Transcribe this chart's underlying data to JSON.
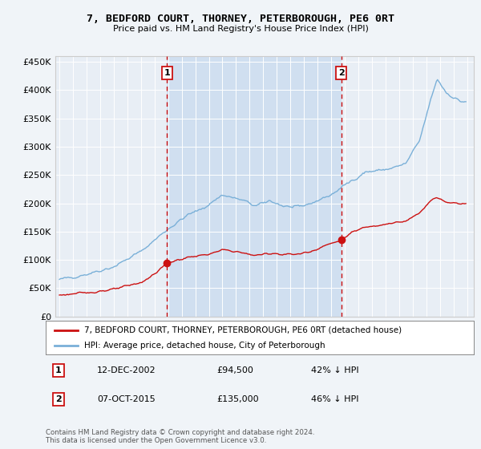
{
  "title": "7, BEDFORD COURT, THORNEY, PETERBOROUGH, PE6 0RT",
  "subtitle": "Price paid vs. HM Land Registry's House Price Index (HPI)",
  "ylim": [
    0,
    460000
  ],
  "yticks": [
    0,
    50000,
    100000,
    150000,
    200000,
    250000,
    300000,
    350000,
    400000,
    450000
  ],
  "ytick_labels": [
    "£0",
    "£50K",
    "£100K",
    "£150K",
    "£200K",
    "£250K",
    "£300K",
    "£350K",
    "£400K",
    "£450K"
  ],
  "background_color": "#f0f4f8",
  "plot_bg_color": "#e8eef5",
  "shade_color": "#d0dff0",
  "legend_entry1": "7, BEDFORD COURT, THORNEY, PETERBOROUGH, PE6 0RT (detached house)",
  "legend_entry2": "HPI: Average price, detached house, City of Peterborough",
  "transaction1_date": "12-DEC-2002",
  "transaction1_price": "£94,500",
  "transaction1_hpi": "42% ↓ HPI",
  "transaction2_date": "07-OCT-2015",
  "transaction2_price": "£135,000",
  "transaction2_hpi": "46% ↓ HPI",
  "footer": "Contains HM Land Registry data © Crown copyright and database right 2024.\nThis data is licensed under the Open Government Licence v3.0.",
  "hpi_color": "#7ab0d8",
  "price_color": "#cc1111",
  "vline_color": "#cc1111",
  "marker_color": "#cc1111",
  "transaction1_x": 2002.92,
  "transaction1_y": 94500,
  "transaction2_x": 2015.75,
  "transaction2_y": 135000,
  "xlim_left": 1994.7,
  "xlim_right": 2025.5
}
